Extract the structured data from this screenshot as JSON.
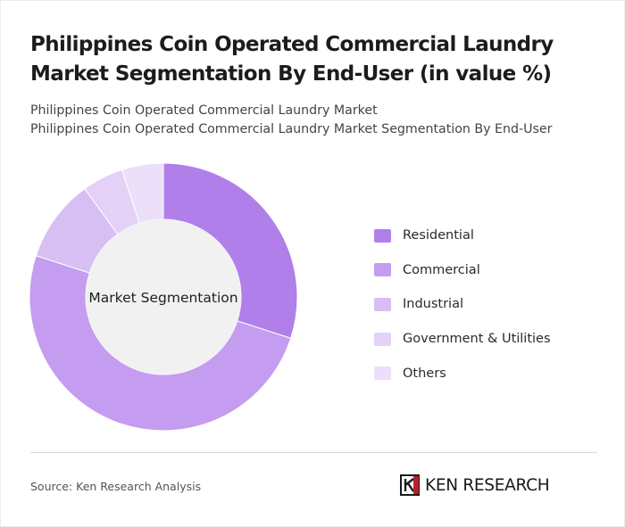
{
  "header": {
    "title": "Philippines Coin Operated Commercial Laundry Market Segmentation By End-User (in value %)",
    "subtitle_line1": "Philippines Coin Operated Commercial Laundry Market",
    "subtitle_line2": "Philippines Coin Operated Commercial Laundry Market Segmentation By End-User"
  },
  "chart_data": {
    "type": "pie",
    "variant": "donut",
    "center_label": "Market Segmentation",
    "legend_position": "right",
    "categories": [
      "Residential",
      "Commercial",
      "Industrial",
      "Government & Utilities",
      "Others"
    ],
    "values": [
      30,
      50,
      10,
      5,
      5
    ],
    "colors": [
      "#b07fea",
      "#c49cf0",
      "#d7bff4",
      "#e3d1f7",
      "#ebdff9"
    ]
  },
  "footer": {
    "source": "Source: Ken Research Analysis",
    "logo_text": "KEN RESEARCH"
  }
}
